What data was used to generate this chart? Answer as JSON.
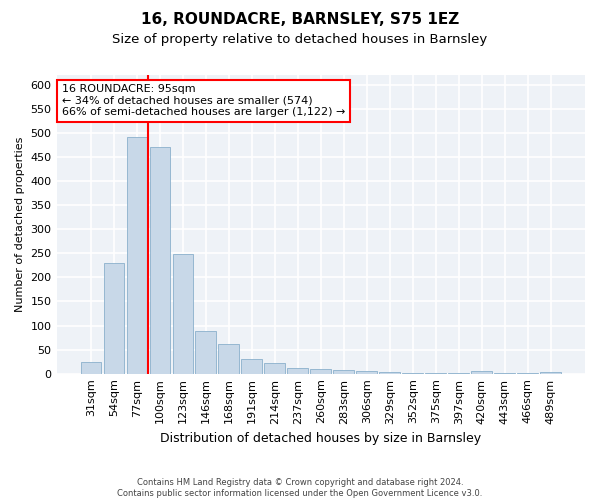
{
  "title1": "16, ROUNDACRE, BARNSLEY, S75 1EZ",
  "title2": "Size of property relative to detached houses in Barnsley",
  "xlabel": "Distribution of detached houses by size in Barnsley",
  "ylabel": "Number of detached properties",
  "footer": "Contains HM Land Registry data © Crown copyright and database right 2024.\nContains public sector information licensed under the Open Government Licence v3.0.",
  "annotation_title": "16 ROUNDACRE: 95sqm",
  "annotation_line2": "← 34% of detached houses are smaller (574)",
  "annotation_line3": "66% of semi-detached houses are larger (1,122) →",
  "categories": [
    "31sqm",
    "54sqm",
    "77sqm",
    "100sqm",
    "123sqm",
    "146sqm",
    "168sqm",
    "191sqm",
    "214sqm",
    "237sqm",
    "260sqm",
    "283sqm",
    "306sqm",
    "329sqm",
    "352sqm",
    "375sqm",
    "397sqm",
    "420sqm",
    "443sqm",
    "466sqm",
    "489sqm"
  ],
  "values": [
    25,
    230,
    491,
    471,
    248,
    88,
    62,
    30,
    22,
    12,
    10,
    8,
    5,
    3,
    2,
    2,
    2,
    6,
    2,
    2,
    4
  ],
  "bar_color": "#c8d8e8",
  "bar_edge_color": "#8ab0cc",
  "vline_color": "red",
  "vline_index": 2.5,
  "annotation_box_color": "white",
  "annotation_box_edge": "red",
  "ylim": [
    0,
    620
  ],
  "yticks": [
    0,
    50,
    100,
    150,
    200,
    250,
    300,
    350,
    400,
    450,
    500,
    550,
    600
  ],
  "background_color": "#eef2f7",
  "grid_color": "white",
  "title1_fontsize": 11,
  "title2_fontsize": 9.5,
  "xlabel_fontsize": 9,
  "ylabel_fontsize": 8,
  "tick_fontsize": 8,
  "annotation_fontsize": 8,
  "footer_fontsize": 6
}
